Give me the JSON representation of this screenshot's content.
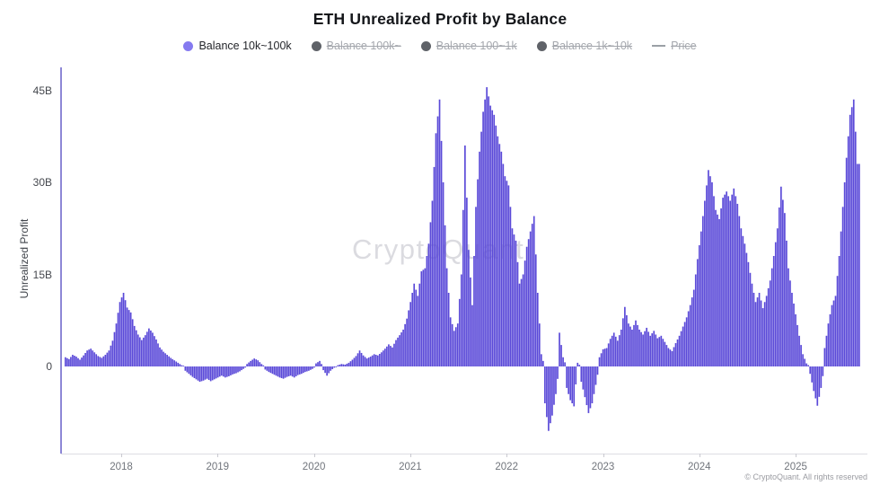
{
  "title": "ETH Unrealized Profit by Balance",
  "legend": [
    {
      "label": "Balance 10k~100k",
      "active": true,
      "marker": "dot",
      "color": "#857af0"
    },
    {
      "label": "Balance 100k~",
      "active": false,
      "marker": "dot",
      "color": "#5f6268"
    },
    {
      "label": "Balance 100~1k",
      "active": false,
      "marker": "dot",
      "color": "#5f6268"
    },
    {
      "label": "Balance 1k~10k",
      "active": false,
      "marker": "dot",
      "color": "#5f6268"
    },
    {
      "label": "Price",
      "active": false,
      "marker": "line",
      "color": "#9aa0a6"
    }
  ],
  "watermark": "CryptoQuant",
  "copyright": "© CryptoQuant. All rights reserved",
  "chart_data": {
    "type": "bar",
    "title": "ETH Unrealized Profit by Balance",
    "ylabel": "Unrealized Profit",
    "xlabel": "",
    "series_name": "Balance 10k~100k",
    "unit": "USD billions",
    "bar_color": "#5a49d8",
    "bar_edge_color": "#4c3dc6",
    "grid": false,
    "legend_position": "top",
    "x_ticks": [
      2018,
      2019,
      2020,
      2021,
      2022,
      2023,
      2024,
      2025
    ],
    "y_ticks": [
      "0",
      "15B",
      "30B",
      "45B"
    ],
    "y_tick_values": [
      0,
      15,
      30,
      45
    ],
    "ylim": [
      -14.2,
      48.7
    ],
    "x_start": 2017.413,
    "x_step": 0.03771,
    "values": [
      1.5,
      1.2,
      1.9,
      1.6,
      1.1,
      1.8,
      2.6,
      2.9,
      2.3,
      1.7,
      1.4,
      1.9,
      2.6,
      4.2,
      7.0,
      10.5,
      12.0,
      9.6,
      8.8,
      6.6,
      5.2,
      4.3,
      5.1,
      6.2,
      5.5,
      4.4,
      3.1,
      2.4,
      1.9,
      1.4,
      1.0,
      0.6,
      0.2,
      -0.7,
      -1.2,
      -1.7,
      -2.1,
      -2.5,
      -2.3,
      -2.0,
      -2.4,
      -2.1,
      -1.8,
      -1.5,
      -1.8,
      -1.6,
      -1.3,
      -1.1,
      -0.8,
      -0.4,
      0.4,
      0.9,
      1.3,
      1.0,
      0.4,
      -0.5,
      -0.9,
      -1.2,
      -1.5,
      -1.8,
      -2.0,
      -1.7,
      -1.5,
      -1.8,
      -1.4,
      -1.2,
      -0.9,
      -0.7,
      -0.4,
      0.5,
      0.9,
      -0.6,
      -1.5,
      -0.7,
      -0.2,
      0.2,
      0.4,
      0.3,
      0.6,
      1.1,
      1.7,
      2.6,
      1.8,
      1.3,
      1.6,
      2.0,
      1.8,
      2.3,
      2.9,
      3.6,
      3.1,
      4.3,
      5.1,
      6.0,
      7.8,
      10.5,
      13.5,
      11.5,
      15.5,
      16,
      20,
      27,
      38,
      43.5,
      30,
      16,
      8,
      5.8,
      7,
      15,
      36,
      19,
      10,
      26,
      35,
      41.5,
      45.5,
      42.5,
      41,
      37.5,
      35,
      31,
      29.5,
      22.5,
      20.5,
      13.5,
      15,
      19.5,
      22,
      24.5,
      12,
      2,
      -6,
      -10.5,
      -8,
      -4.5,
      5.5,
      1.5,
      -3.5,
      -5.5,
      -6.5,
      0.6,
      -2.5,
      -5,
      -7.6,
      -6,
      -3,
      1.5,
      2.8,
      3.0,
      4.5,
      5.5,
      4.2,
      6.0,
      9.7,
      7.0,
      6.0,
      7.5,
      6.0,
      5.2,
      6.3,
      5.0,
      5.8,
      4.6,
      5.0,
      4.0,
      3.0,
      2.5,
      3.8,
      5.0,
      6.5,
      8.0,
      10.0,
      12.5,
      17.5,
      22,
      27,
      32,
      30,
      25.5,
      24,
      27.5,
      28.5,
      27,
      29,
      26.5,
      22.5,
      20,
      17,
      13.5,
      10.5,
      12,
      9.5,
      11.5,
      14,
      18,
      22.5,
      29.3,
      25,
      16,
      12,
      8.5,
      5,
      2,
      0.5,
      -1.2,
      -4,
      -6.4,
      -3.5,
      3,
      7,
      10,
      11.5,
      18,
      26,
      34,
      41,
      43.5,
      33
    ]
  }
}
